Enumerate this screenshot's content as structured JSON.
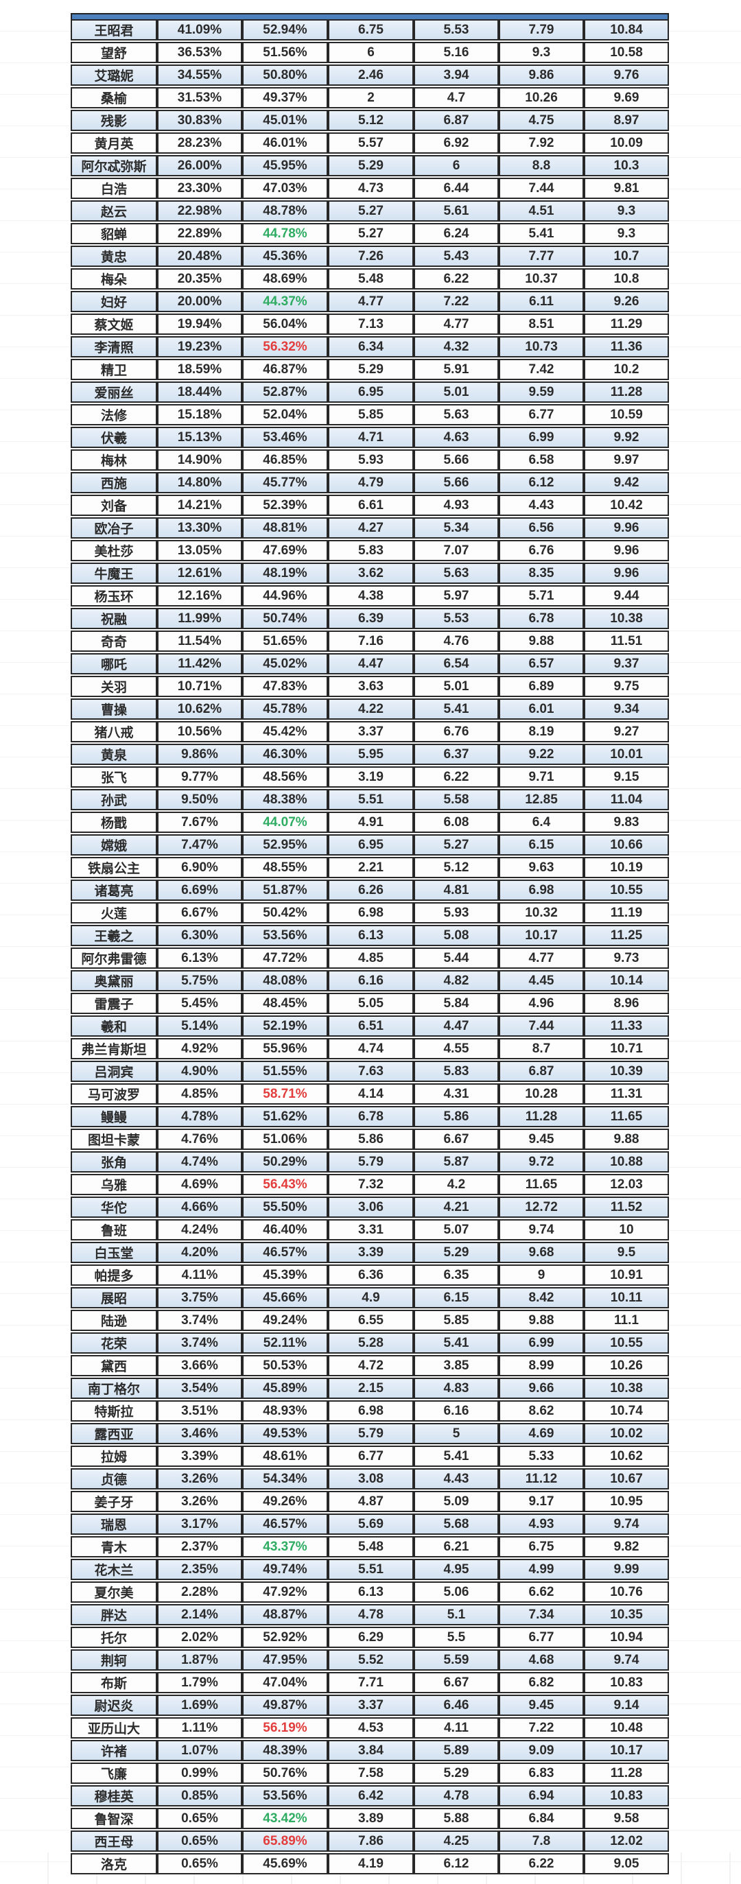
{
  "colors": {
    "row_blue": "#d3e2f1",
    "row_white": "#fdfdfd",
    "header_strip_blue": "#4d81bd",
    "border": "#282828",
    "highlight_green": "#2eac62",
    "highlight_red": "#e23c3c"
  },
  "table": {
    "note_header": "header row cropped out of screenshot, only blue strip visible",
    "highlights": {
      "9": "green",
      "12": "green",
      "14": "red",
      "35": "green",
      "47": "red",
      "51": "red",
      "67": "green",
      "75": "red",
      "79": "green",
      "80": "red"
    },
    "rows": [
      [
        "王昭君",
        "41.09%",
        "52.94%",
        "6.75",
        "5.53",
        "7.79",
        "10.84"
      ],
      [
        "望舒",
        "36.53%",
        "51.56%",
        "6",
        "5.16",
        "9.3",
        "10.58"
      ],
      [
        "艾璐妮",
        "34.55%",
        "50.80%",
        "2.46",
        "3.94",
        "9.86",
        "9.76"
      ],
      [
        "桑榆",
        "31.53%",
        "49.37%",
        "2",
        "4.7",
        "10.26",
        "9.69"
      ],
      [
        "残影",
        "30.83%",
        "45.01%",
        "5.12",
        "6.87",
        "4.75",
        "8.97"
      ],
      [
        "黄月英",
        "28.23%",
        "46.01%",
        "5.57",
        "6.92",
        "7.92",
        "10.09"
      ],
      [
        "阿尔忒弥斯",
        "26.00%",
        "45.95%",
        "5.29",
        "6",
        "8.8",
        "10.3"
      ],
      [
        "白浩",
        "23.30%",
        "47.03%",
        "4.73",
        "6.44",
        "7.44",
        "9.81"
      ],
      [
        "赵云",
        "22.98%",
        "48.78%",
        "5.27",
        "5.61",
        "4.51",
        "9.3"
      ],
      [
        "貂蝉",
        "22.89%",
        "44.78%",
        "5.27",
        "6.24",
        "5.41",
        "9.3"
      ],
      [
        "黄忠",
        "20.48%",
        "45.36%",
        "7.26",
        "5.43",
        "7.77",
        "10.7"
      ],
      [
        "梅朵",
        "20.35%",
        "48.69%",
        "5.48",
        "6.22",
        "10.37",
        "10.8"
      ],
      [
        "妇好",
        "20.00%",
        "44.37%",
        "4.77",
        "7.22",
        "6.11",
        "9.26"
      ],
      [
        "蔡文姬",
        "19.94%",
        "56.04%",
        "7.13",
        "4.77",
        "8.51",
        "11.29"
      ],
      [
        "李清照",
        "19.23%",
        "56.32%",
        "6.34",
        "4.32",
        "10.73",
        "11.36"
      ],
      [
        "精卫",
        "18.59%",
        "46.87%",
        "5.29",
        "5.91",
        "7.42",
        "10.2"
      ],
      [
        "爱丽丝",
        "18.44%",
        "52.87%",
        "6.95",
        "5.01",
        "9.59",
        "11.28"
      ],
      [
        "法修",
        "15.18%",
        "52.04%",
        "5.85",
        "5.63",
        "6.77",
        "10.59"
      ],
      [
        "伏羲",
        "15.13%",
        "53.46%",
        "4.71",
        "4.63",
        "6.99",
        "9.92"
      ],
      [
        "梅林",
        "14.90%",
        "46.85%",
        "5.93",
        "5.66",
        "6.58",
        "9.97"
      ],
      [
        "西施",
        "14.80%",
        "45.77%",
        "4.79",
        "5.66",
        "6.12",
        "9.42"
      ],
      [
        "刘备",
        "14.21%",
        "52.39%",
        "6.61",
        "4.93",
        "4.43",
        "10.42"
      ],
      [
        "欧冶子",
        "13.30%",
        "48.81%",
        "4.27",
        "5.34",
        "6.56",
        "9.96"
      ],
      [
        "美杜莎",
        "13.05%",
        "47.69%",
        "5.83",
        "7.07",
        "6.76",
        "9.96"
      ],
      [
        "牛魔王",
        "12.61%",
        "48.19%",
        "3.62",
        "5.63",
        "8.35",
        "9.96"
      ],
      [
        "杨玉环",
        "12.16%",
        "44.96%",
        "4.38",
        "5.97",
        "5.71",
        "9.44"
      ],
      [
        "祝融",
        "11.99%",
        "50.74%",
        "6.39",
        "5.53",
        "6.78",
        "10.38"
      ],
      [
        "奇奇",
        "11.54%",
        "51.65%",
        "7.16",
        "4.76",
        "9.88",
        "11.51"
      ],
      [
        "哪吒",
        "11.42%",
        "45.02%",
        "4.47",
        "6.54",
        "6.57",
        "9.37"
      ],
      [
        "关羽",
        "10.71%",
        "47.83%",
        "3.63",
        "5.01",
        "6.89",
        "9.75"
      ],
      [
        "曹操",
        "10.62%",
        "45.78%",
        "4.22",
        "5.41",
        "6.01",
        "9.34"
      ],
      [
        "猪八戒",
        "10.56%",
        "45.42%",
        "3.37",
        "6.76",
        "8.19",
        "9.27"
      ],
      [
        "黄泉",
        "9.86%",
        "46.30%",
        "5.95",
        "6.37",
        "9.22",
        "10.01"
      ],
      [
        "张飞",
        "9.77%",
        "48.56%",
        "3.19",
        "6.22",
        "9.71",
        "9.15"
      ],
      [
        "孙武",
        "9.50%",
        "48.38%",
        "5.51",
        "5.58",
        "12.85",
        "11.04"
      ],
      [
        "杨戬",
        "7.67%",
        "44.07%",
        "4.91",
        "6.08",
        "6.4",
        "9.83"
      ],
      [
        "嫦娥",
        "7.47%",
        "52.95%",
        "6.95",
        "5.27",
        "6.15",
        "10.66"
      ],
      [
        "铁扇公主",
        "6.90%",
        "48.55%",
        "2.21",
        "5.12",
        "9.63",
        "10.19"
      ],
      [
        "诸葛亮",
        "6.69%",
        "51.87%",
        "6.26",
        "4.81",
        "6.98",
        "10.55"
      ],
      [
        "火莲",
        "6.67%",
        "50.42%",
        "6.98",
        "5.93",
        "10.32",
        "11.19"
      ],
      [
        "王羲之",
        "6.30%",
        "53.56%",
        "6.13",
        "5.08",
        "10.17",
        "11.25"
      ],
      [
        "阿尔弗雷德",
        "6.13%",
        "47.72%",
        "4.85",
        "5.44",
        "4.77",
        "9.73"
      ],
      [
        "奥黛丽",
        "5.75%",
        "48.08%",
        "6.16",
        "4.82",
        "4.45",
        "10.14"
      ],
      [
        "雷震子",
        "5.45%",
        "48.45%",
        "5.05",
        "5.84",
        "4.96",
        "8.96"
      ],
      [
        "羲和",
        "5.14%",
        "52.19%",
        "6.51",
        "4.47",
        "7.44",
        "11.33"
      ],
      [
        "弗兰肯斯坦",
        "4.92%",
        "55.96%",
        "4.74",
        "4.55",
        "8.7",
        "10.71"
      ],
      [
        "吕洞宾",
        "4.90%",
        "51.55%",
        "7.63",
        "5.83",
        "6.87",
        "10.39"
      ],
      [
        "马可波罗",
        "4.85%",
        "58.71%",
        "4.14",
        "4.31",
        "10.28",
        "11.31"
      ],
      [
        "鳗鳗",
        "4.78%",
        "51.62%",
        "6.78",
        "5.86",
        "11.28",
        "11.65"
      ],
      [
        "图坦卡蒙",
        "4.76%",
        "51.06%",
        "5.86",
        "6.67",
        "9.45",
        "9.88"
      ],
      [
        "张角",
        "4.74%",
        "50.29%",
        "5.79",
        "5.87",
        "9.72",
        "10.88"
      ],
      [
        "乌雅",
        "4.69%",
        "56.43%",
        "7.32",
        "4.2",
        "11.65",
        "12.03"
      ],
      [
        "华佗",
        "4.66%",
        "55.50%",
        "3.06",
        "4.21",
        "12.72",
        "11.52"
      ],
      [
        "鲁班",
        "4.24%",
        "46.40%",
        "3.31",
        "5.07",
        "9.74",
        "10"
      ],
      [
        "白玉堂",
        "4.20%",
        "46.57%",
        "3.39",
        "5.29",
        "9.68",
        "9.5"
      ],
      [
        "帕提多",
        "4.11%",
        "45.39%",
        "6.36",
        "6.35",
        "9",
        "10.91"
      ],
      [
        "展昭",
        "3.75%",
        "45.66%",
        "4.9",
        "6.15",
        "8.42",
        "10.11"
      ],
      [
        "陆逊",
        "3.74%",
        "49.24%",
        "6.55",
        "5.85",
        "9.88",
        "11.1"
      ],
      [
        "花荣",
        "3.74%",
        "52.11%",
        "5.28",
        "5.41",
        "6.99",
        "10.55"
      ],
      [
        "黛西",
        "3.66%",
        "50.53%",
        "4.72",
        "3.85",
        "8.99",
        "10.26"
      ],
      [
        "南丁格尔",
        "3.54%",
        "45.89%",
        "2.15",
        "4.83",
        "9.66",
        "10.38"
      ],
      [
        "特斯拉",
        "3.51%",
        "48.93%",
        "6.98",
        "6.16",
        "8.62",
        "10.74"
      ],
      [
        "露西亚",
        "3.46%",
        "49.53%",
        "5.79",
        "5",
        "4.69",
        "10.02"
      ],
      [
        "拉姆",
        "3.39%",
        "48.61%",
        "6.77",
        "5.41",
        "5.33",
        "10.62"
      ],
      [
        "贞德",
        "3.26%",
        "54.34%",
        "3.08",
        "4.43",
        "11.12",
        "10.67"
      ],
      [
        "姜子牙",
        "3.26%",
        "49.26%",
        "4.87",
        "5.09",
        "9.17",
        "10.95"
      ],
      [
        "瑞恩",
        "3.17%",
        "46.57%",
        "5.69",
        "5.68",
        "4.93",
        "9.74"
      ],
      [
        "青木",
        "2.37%",
        "43.37%",
        "5.48",
        "6.21",
        "6.75",
        "9.82"
      ],
      [
        "花木兰",
        "2.35%",
        "49.74%",
        "5.51",
        "4.95",
        "4.99",
        "9.99"
      ],
      [
        "夏尔美",
        "2.28%",
        "47.92%",
        "6.13",
        "5.06",
        "6.62",
        "10.76"
      ],
      [
        "胖达",
        "2.14%",
        "48.87%",
        "4.78",
        "5.1",
        "7.34",
        "10.35"
      ],
      [
        "托尔",
        "2.02%",
        "52.92%",
        "6.29",
        "5.5",
        "6.77",
        "10.94"
      ],
      [
        "荆轲",
        "1.87%",
        "47.95%",
        "5.52",
        "5.59",
        "4.68",
        "9.74"
      ],
      [
        "布斯",
        "1.79%",
        "47.04%",
        "7.71",
        "6.67",
        "6.82",
        "10.83"
      ],
      [
        "尉迟炎",
        "1.69%",
        "49.87%",
        "3.37",
        "6.46",
        "9.45",
        "9.14"
      ],
      [
        "亚历山大",
        "1.11%",
        "56.19%",
        "4.53",
        "4.11",
        "7.22",
        "10.48"
      ],
      [
        "许褚",
        "1.07%",
        "48.39%",
        "3.84",
        "5.89",
        "9.09",
        "10.17"
      ],
      [
        "飞廉",
        "0.99%",
        "50.76%",
        "7.58",
        "5.29",
        "6.83",
        "11.28"
      ],
      [
        "穆桂英",
        "0.85%",
        "53.56%",
        "6.42",
        "4.78",
        "6.94",
        "10.83"
      ],
      [
        "鲁智深",
        "0.65%",
        "43.42%",
        "3.89",
        "5.88",
        "6.84",
        "9.58"
      ],
      [
        "西王母",
        "0.65%",
        "65.89%",
        "7.86",
        "4.25",
        "7.8",
        "12.02"
      ],
      [
        "洛克",
        "0.65%",
        "45.69%",
        "4.19",
        "6.12",
        "6.22",
        "9.05"
      ]
    ]
  }
}
